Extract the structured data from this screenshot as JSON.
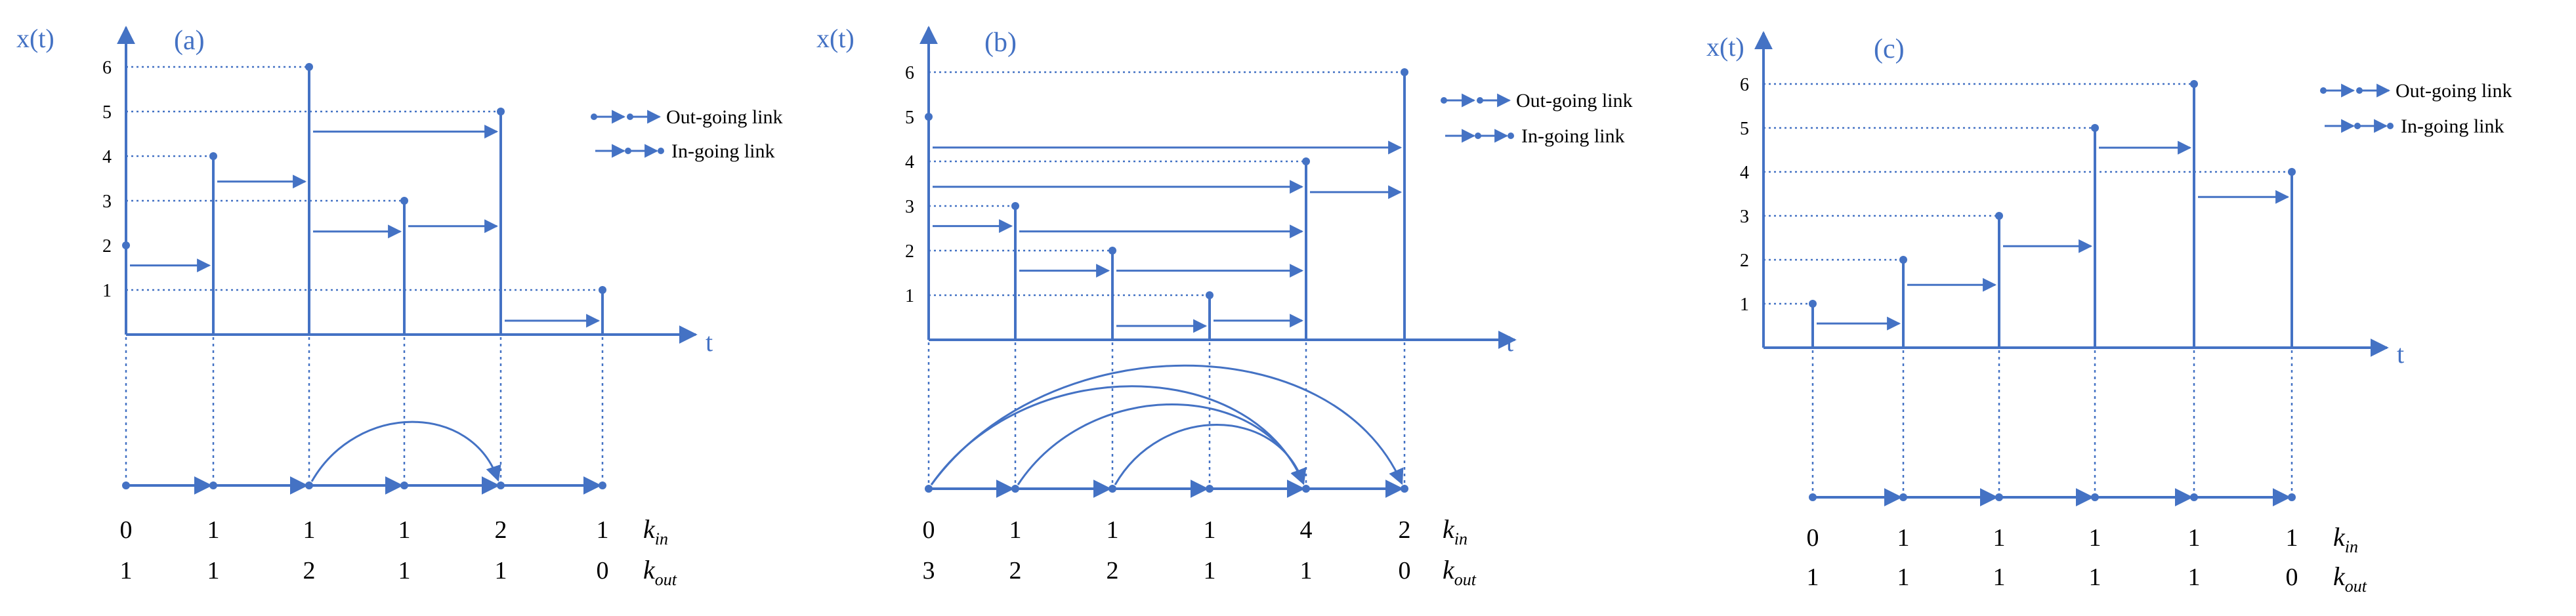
{
  "colors": {
    "accent": "#4472c4",
    "text": "#000000"
  },
  "legend": {
    "out_label": "Out-going link",
    "in_label": "In-going link"
  },
  "row_labels": {
    "k": "k",
    "in_sub": "in",
    "out_sub": "out"
  },
  "panels": [
    {
      "id": "a",
      "label": "(a)",
      "y_axis_label": "x(t)",
      "x_axis_label": "t",
      "y_ticks": [
        "1",
        "2",
        "3",
        "4",
        "5",
        "6"
      ],
      "series": [
        2,
        4,
        6,
        3,
        5,
        1
      ],
      "k_in": [
        "0",
        "1",
        "1",
        "1",
        "2",
        "1"
      ],
      "k_out": [
        "1",
        "1",
        "2",
        "1",
        "1",
        "0"
      ]
    },
    {
      "id": "b",
      "label": "(b)",
      "y_axis_label": "x(t)",
      "x_axis_label": "t",
      "y_ticks": [
        "1",
        "2",
        "3",
        "4",
        "5",
        "6"
      ],
      "series": [
        5,
        3,
        2,
        1,
        4,
        6
      ],
      "k_in": [
        "0",
        "1",
        "1",
        "1",
        "4",
        "2"
      ],
      "k_out": [
        "3",
        "2",
        "2",
        "1",
        "1",
        "0"
      ]
    },
    {
      "id": "c",
      "label": "(c)",
      "y_axis_label": "x(t)",
      "x_axis_label": "t",
      "y_ticks": [
        "1",
        "2",
        "3",
        "4",
        "5",
        "6"
      ],
      "series": [
        1,
        2,
        3,
        5,
        6,
        4
      ],
      "k_in": [
        "0",
        "1",
        "1",
        "1",
        "1",
        "1"
      ],
      "k_out": [
        "1",
        "1",
        "1",
        "1",
        "1",
        "0"
      ]
    }
  ]
}
